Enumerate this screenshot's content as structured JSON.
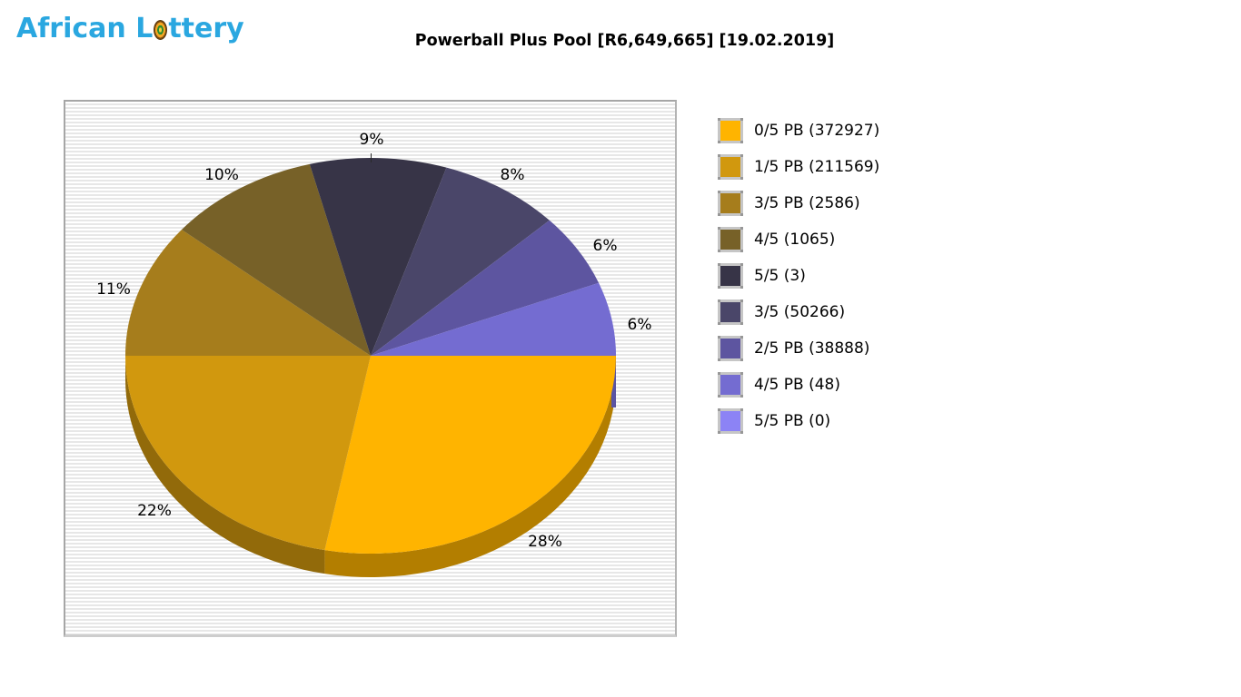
{
  "logo": {
    "word1": "African",
    "word2_start": "L",
    "word2_end": "ttery"
  },
  "title": "Powerball Plus Pool [R6,649,665] [19.02.2019]",
  "colors": {
    "logo_blue": "#2aa7e0",
    "panel_stripe": "#e7e7e7",
    "label_text": "#000000"
  },
  "chart_data": {
    "type": "pie",
    "style": "3d",
    "title": "Powerball Plus Pool [R6,649,665] [19.02.2019]",
    "pool_total": "R6,649,665",
    "draw_date": "19.02.2019",
    "legend_position": "right",
    "series": [
      {
        "label": "0/5 PB",
        "count": 372927,
        "percent": 28,
        "pct_label": "28%",
        "legend": "0/5 PB (372927)",
        "color": "#FFB400"
      },
      {
        "label": "1/5 PB",
        "count": 211569,
        "percent": 22,
        "pct_label": "22%",
        "legend": "1/5 PB (211569)",
        "color": "#D1980E"
      },
      {
        "label": "3/5 PB",
        "count": 2586,
        "percent": 11,
        "pct_label": "11%",
        "legend": "3/5 PB (2586)",
        "color": "#A67D1C"
      },
      {
        "label": "4/5",
        "count": 1065,
        "percent": 10,
        "pct_label": "10%",
        "legend": "4/5 (1065)",
        "color": "#776128"
      },
      {
        "label": "5/5",
        "count": 3,
        "percent": 9,
        "pct_label": "9%",
        "legend": "5/5 (3)",
        "color": "#373447"
      },
      {
        "label": "3/5",
        "count": 50266,
        "percent": 8,
        "pct_label": "8%",
        "legend": "3/5 (50266)",
        "color": "#4A4669"
      },
      {
        "label": "2/5 PB",
        "count": 38888,
        "percent": 6,
        "pct_label": "6%",
        "legend": "2/5 PB (38888)",
        "color": "#5D55A0"
      },
      {
        "label": "4/5 PB",
        "count": 48,
        "percent": 6,
        "pct_label": "6%",
        "legend": "4/5 PB (48)",
        "color": "#746CD1"
      },
      {
        "label": "5/5 PB",
        "count": 0,
        "percent": 0,
        "pct_label": null,
        "legend": "5/5 PB (0)",
        "color": "#8C83F5"
      }
    ]
  }
}
